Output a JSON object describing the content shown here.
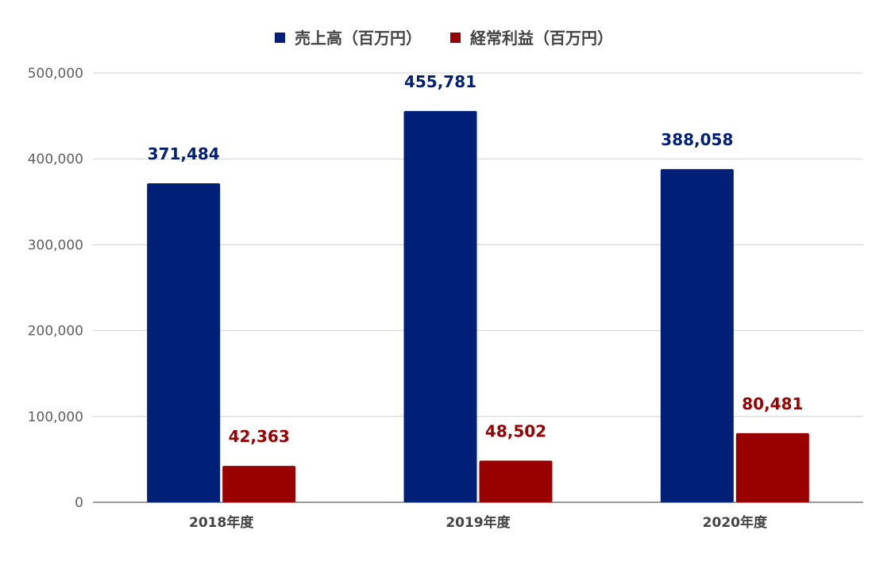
{
  "chart_data": {
    "type": "bar",
    "title": "",
    "xlabel": "",
    "ylabel": "",
    "categories": [
      "2018年度",
      "2019年度",
      "2020年度"
    ],
    "series": [
      {
        "name": "売上高（百万円）",
        "color": "#001f77",
        "values": [
          371484,
          455781,
          388058
        ],
        "labels": [
          "371,484",
          "455,781",
          "388,058"
        ]
      },
      {
        "name": "経常利益（百万円）",
        "color": "#990000",
        "values": [
          42363,
          48502,
          80481
        ],
        "labels": [
          "42,363",
          "48,502",
          "80,481"
        ]
      }
    ],
    "ylim": [
      0,
      500000
    ],
    "yticks": [
      0,
      100000,
      200000,
      300000,
      400000,
      500000
    ],
    "ytick_labels": [
      "0",
      "100,000",
      "200,000",
      "300,000",
      "400,000",
      "500,000"
    ],
    "grid": true,
    "legend_position": "top"
  }
}
